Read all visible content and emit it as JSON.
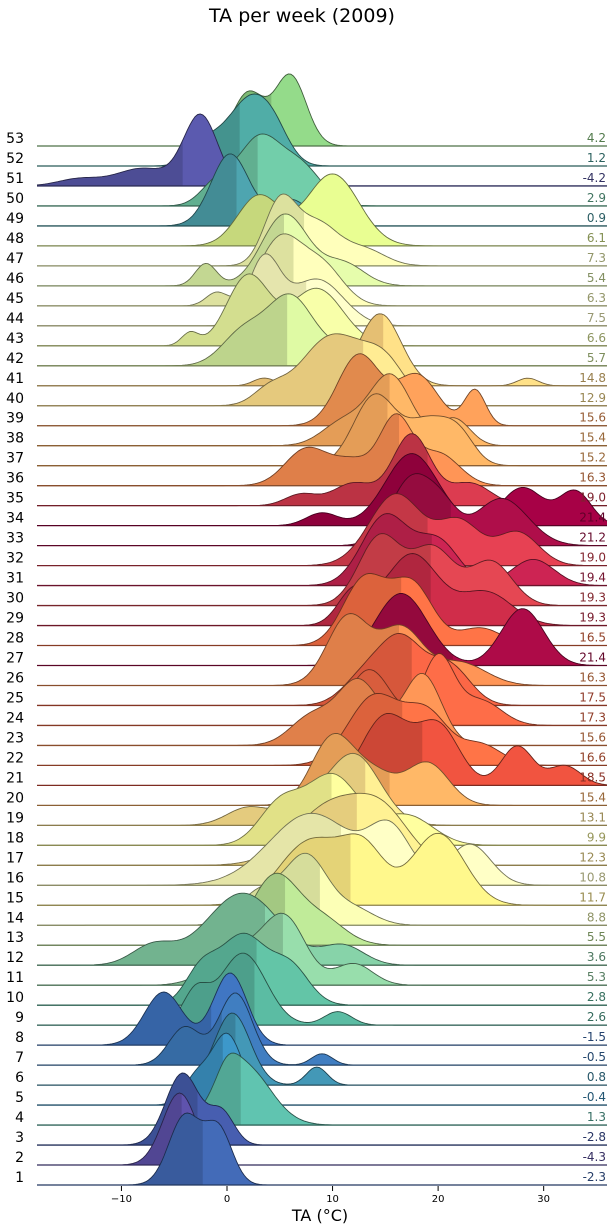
{
  "chart_data": {
    "type": "ridgeline",
    "title": "TA per week (2009)",
    "xlabel": "TA (°C)",
    "xlim": [
      -18,
      36
    ],
    "xticks": [
      -10,
      0,
      10,
      20,
      30
    ],
    "rows": [
      {
        "week": "1",
        "mean": -2.3,
        "label": "-2.3",
        "color": "#3f65ae",
        "peaks": [
          [
            -4.0,
            1.5,
            1.0
          ],
          [
            -0.8,
            1.3,
            0.8
          ]
        ]
      },
      {
        "week": "2",
        "mean": -4.3,
        "label": "-4.3",
        "color": "#5a4ea3",
        "peaks": [
          [
            -4.5,
            1.6,
            1.0
          ]
        ]
      },
      {
        "week": "3",
        "mean": -2.8,
        "label": "-2.8",
        "color": "#4359a6",
        "peaks": [
          [
            -4.2,
            1.6,
            1.0
          ],
          [
            -0.5,
            1.2,
            0.45
          ]
        ]
      },
      {
        "week": "4",
        "mean": 1.3,
        "label": "1.3",
        "color": "#5bb9a6",
        "peaks": [
          [
            1.5,
            2.5,
            0.85
          ],
          [
            0.0,
            1.0,
            0.25
          ]
        ]
      },
      {
        "week": "5",
        "mean": -0.4,
        "label": "-0.4",
        "color": "#3a8fbf",
        "peaks": [
          [
            0.0,
            1.5,
            1.0
          ],
          [
            -3.0,
            1.2,
            0.35
          ]
        ]
      },
      {
        "week": "6",
        "mean": 0.8,
        "label": "0.8",
        "color": "#3f8fad",
        "peaks": [
          [
            0.5,
            1.7,
            0.8
          ],
          [
            8.5,
            1.0,
            0.2
          ]
        ]
      },
      {
        "week": "7",
        "mean": -0.5,
        "label": "-0.5",
        "color": "#3c77b6",
        "peaks": [
          [
            0.8,
            1.6,
            0.95
          ],
          [
            -4.0,
            1.5,
            0.5
          ],
          [
            9.0,
            1.0,
            0.15
          ]
        ]
      },
      {
        "week": "8",
        "mean": -1.5,
        "label": "-1.5",
        "color": "#3c6fb8",
        "peaks": [
          [
            0.3,
            1.6,
            0.95
          ],
          [
            -6.0,
            1.8,
            0.7
          ]
        ]
      },
      {
        "week": "9",
        "mean": 2.6,
        "label": "2.6",
        "color": "#56b19a",
        "peaks": [
          [
            1.5,
            2.2,
            0.8
          ],
          [
            -3.0,
            1.2,
            0.35
          ],
          [
            10.5,
            1.3,
            0.15
          ]
        ]
      },
      {
        "week": "10",
        "mean": 2.8,
        "label": "2.8",
        "color": "#5dba9e",
        "peaks": [
          [
            1.5,
            2.2,
            0.75
          ],
          [
            -2.5,
            1.5,
            0.35
          ],
          [
            6.0,
            1.8,
            0.4
          ]
        ]
      },
      {
        "week": "11",
        "mean": 5.3,
        "label": "5.3",
        "color": "#8fd1a2",
        "peaks": [
          [
            5.5,
            2.0,
            0.75
          ],
          [
            1.0,
            2.5,
            0.4
          ],
          [
            12.0,
            1.8,
            0.25
          ]
        ]
      },
      {
        "week": "12",
        "mean": 3.6,
        "label": "3.6",
        "color": "#7fc79f",
        "peaks": [
          [
            1.5,
            3.5,
            0.75
          ],
          [
            -7.0,
            2.0,
            0.2
          ],
          [
            11.0,
            2.0,
            0.2
          ]
        ]
      },
      {
        "week": "13",
        "mean": 5.5,
        "label": "5.5",
        "color": "#b5de90",
        "peaks": [
          [
            4.5,
            2.2,
            0.95
          ],
          [
            9.0,
            2.2,
            0.35
          ]
        ]
      },
      {
        "week": "14",
        "mean": 8.8,
        "label": "8.8",
        "color": "#eef6ac",
        "peaks": [
          [
            7.5,
            2.0,
            0.85
          ],
          [
            3.0,
            2.0,
            0.4
          ],
          [
            12.0,
            2.0,
            0.2
          ]
        ]
      },
      {
        "week": "15",
        "mean": 11.7,
        "label": "11.7",
        "color": "#fdea84",
        "peaks": [
          [
            8.0,
            3.0,
            0.45
          ],
          [
            20.0,
            2.5,
            0.5
          ],
          [
            13.0,
            2.0,
            0.35
          ]
        ]
      },
      {
        "week": "16",
        "mean": 10.8,
        "label": "10.8",
        "color": "#fefebb",
        "peaks": [
          [
            8.0,
            4.0,
            0.35
          ],
          [
            15.5,
            2.0,
            0.25
          ],
          [
            23.0,
            2.0,
            0.2
          ]
        ]
      },
      {
        "week": "17",
        "mean": 12.3,
        "label": "12.3",
        "color": "#fee48b",
        "peaks": [
          [
            10.0,
            3.5,
            0.45
          ],
          [
            15.0,
            2.5,
            0.3
          ]
        ]
      },
      {
        "week": "18",
        "mean": 9.9,
        "label": "9.9",
        "color": "#fafa96",
        "peaks": [
          [
            10.0,
            2.5,
            0.7
          ],
          [
            5.0,
            2.0,
            0.4
          ],
          [
            17.0,
            2.5,
            0.3
          ]
        ]
      },
      {
        "week": "19",
        "mean": 13.1,
        "label": "13.1",
        "color": "#fde28c",
        "peaks": [
          [
            12.0,
            2.5,
            0.8
          ],
          [
            2.0,
            2.0,
            0.2
          ],
          [
            7.0,
            2.0,
            0.2
          ]
        ]
      },
      {
        "week": "20",
        "mean": 15.4,
        "label": "15.4",
        "color": "#fdae61",
        "peaks": [
          [
            10.0,
            2.0,
            0.8
          ],
          [
            19.0,
            2.0,
            0.5
          ],
          [
            14.0,
            2.0,
            0.35
          ]
        ]
      },
      {
        "week": "21",
        "mean": 18.5,
        "label": "18.5",
        "color": "#e34f3c",
        "peaks": [
          [
            15.0,
            2.2,
            0.35
          ],
          [
            20.0,
            2.0,
            0.3
          ],
          [
            27.5,
            1.5,
            0.2
          ],
          [
            32.0,
            1.5,
            0.1
          ]
        ]
      },
      {
        "week": "22",
        "mean": 16.6,
        "label": "16.6",
        "color": "#f46d43",
        "peaks": [
          [
            14.0,
            2.5,
            0.5
          ],
          [
            19.0,
            2.0,
            0.35
          ],
          [
            24.0,
            2.0,
            0.15
          ]
        ]
      },
      {
        "week": "23",
        "mean": 15.6,
        "label": "15.6",
        "color": "#f98e52",
        "peaks": [
          [
            12.5,
            2.0,
            0.45
          ],
          [
            18.5,
            1.8,
            0.5
          ],
          [
            8.0,
            2.0,
            0.2
          ]
        ]
      },
      {
        "week": "24",
        "mean": 17.3,
        "label": "17.3",
        "color": "#f06744",
        "peaks": [
          [
            13.5,
            2.0,
            0.45
          ],
          [
            20.0,
            1.5,
            0.55
          ],
          [
            24.0,
            2.0,
            0.2
          ]
        ]
      },
      {
        "week": "25",
        "mean": 17.5,
        "label": "17.5",
        "color": "#ee6142",
        "peaks": [
          [
            16.5,
            2.0,
            0.55
          ],
          [
            21.0,
            2.0,
            0.35
          ],
          [
            13.0,
            2.0,
            0.25
          ]
        ]
      },
      {
        "week": "26",
        "mean": 16.3,
        "label": "16.3",
        "color": "#f88d51",
        "peaks": [
          [
            11.5,
            2.0,
            0.75
          ],
          [
            16.5,
            2.0,
            0.6
          ],
          [
            22.0,
            2.5,
            0.25
          ]
        ]
      },
      {
        "week": "27",
        "mean": 21.4,
        "label": "21.4",
        "color": "#a40a44",
        "peaks": [
          [
            16.5,
            2.5,
            0.95
          ],
          [
            28.0,
            2.0,
            0.75
          ]
        ]
      },
      {
        "week": "28",
        "mean": 16.5,
        "label": "16.5",
        "color": "#f46d43",
        "peaks": [
          [
            13.0,
            2.0,
            0.75
          ],
          [
            17.5,
            2.0,
            0.7
          ],
          [
            24.0,
            2.0,
            0.2
          ]
        ]
      },
      {
        "week": "29",
        "mean": 19.3,
        "label": "19.3",
        "color": "#c42a46",
        "peaks": [
          [
            17.5,
            2.5,
            0.75
          ],
          [
            12.0,
            1.5,
            0.35
          ],
          [
            24.5,
            2.5,
            0.35
          ]
        ]
      },
      {
        "week": "30",
        "mean": 19.3,
        "label": "19.3",
        "color": "#d8434e",
        "peaks": [
          [
            14.5,
            2.0,
            0.55
          ],
          [
            19.5,
            2.0,
            0.45
          ],
          [
            25.0,
            2.0,
            0.35
          ]
        ]
      },
      {
        "week": "31",
        "mean": 19.4,
        "label": "19.4",
        "color": "#c1224e",
        "peaks": [
          [
            15.0,
            2.2,
            0.8
          ],
          [
            20.0,
            2.0,
            0.5
          ],
          [
            29.0,
            2.0,
            0.3
          ]
        ]
      },
      {
        "week": "32",
        "mean": 19.0,
        "label": "19.0",
        "color": "#da3d4e",
        "peaks": [
          [
            16.0,
            2.5,
            0.75
          ],
          [
            22.0,
            2.0,
            0.45
          ],
          [
            27.5,
            2.0,
            0.35
          ]
        ]
      },
      {
        "week": "33",
        "mean": 21.2,
        "label": "21.2",
        "color": "#a50d46",
        "peaks": [
          [
            17.5,
            2.0,
            0.85
          ],
          [
            26.0,
            2.5,
            0.6
          ],
          [
            20.5,
            1.5,
            0.35
          ]
        ]
      },
      {
        "week": "34",
        "mean": 21.4,
        "label": "21.4",
        "color": "#9e0142",
        "peaks": [
          [
            17.5,
            2.5,
            0.85
          ],
          [
            28.0,
            2.0,
            0.45
          ],
          [
            33.0,
            1.5,
            0.4
          ],
          [
            9.0,
            1.5,
            0.15
          ]
        ]
      },
      {
        "week": "35",
        "mean": 19.0,
        "label": "19.0",
        "color": "#d0394b",
        "peaks": [
          [
            17.5,
            1.8,
            0.95
          ],
          [
            12.0,
            2.0,
            0.3
          ],
          [
            7.0,
            1.5,
            0.15
          ],
          [
            23.0,
            2.0,
            0.3
          ]
        ]
      },
      {
        "week": "36",
        "mean": 16.3,
        "label": "16.3",
        "color": "#f88d51",
        "peaks": [
          [
            16.0,
            1.5,
            0.8
          ],
          [
            7.5,
            2.0,
            0.45
          ],
          [
            20.0,
            2.0,
            0.4
          ],
          [
            12.0,
            2.0,
            0.3
          ]
        ]
      },
      {
        "week": "37",
        "mean": 15.2,
        "label": "15.2",
        "color": "#fdae61",
        "peaks": [
          [
            14.0,
            2.0,
            0.65
          ],
          [
            19.0,
            2.0,
            0.4
          ],
          [
            22.0,
            1.5,
            0.25
          ]
        ]
      },
      {
        "week": "38",
        "mean": 15.4,
        "label": "15.4",
        "color": "#fdae61",
        "peaks": [
          [
            15.5,
            2.0,
            0.9
          ],
          [
            11.0,
            2.0,
            0.3
          ],
          [
            21.5,
            1.5,
            0.35
          ]
        ]
      },
      {
        "week": "39",
        "mean": 15.6,
        "label": "15.6",
        "color": "#fa9956",
        "peaks": [
          [
            12.5,
            2.0,
            0.7
          ],
          [
            18.0,
            2.0,
            0.5
          ],
          [
            23.5,
            1.0,
            0.35
          ]
        ]
      },
      {
        "week": "40",
        "mean": 12.9,
        "label": "12.9",
        "color": "#fedf8b",
        "peaks": [
          [
            10.0,
            3.0,
            0.75
          ],
          [
            15.0,
            2.0,
            0.4
          ],
          [
            4.0,
            1.5,
            0.15
          ]
        ]
      },
      {
        "week": "41",
        "mean": 14.8,
        "label": "14.8",
        "color": "#fed480",
        "peaks": [
          [
            14.5,
            2.0,
            0.95
          ],
          [
            3.5,
            1.0,
            0.1
          ],
          [
            8.0,
            1.5,
            0.12
          ],
          [
            28.5,
            1.0,
            0.1
          ]
        ]
      },
      {
        "week": "42",
        "mean": 5.7,
        "label": "5.7",
        "color": "#d2ec9b",
        "peaks": [
          [
            6.0,
            2.2,
            0.95
          ],
          [
            1.5,
            2.0,
            0.45
          ],
          [
            11.0,
            2.0,
            0.2
          ]
        ]
      },
      {
        "week": "43",
        "mean": 6.6,
        "label": "6.6",
        "color": "#eaf79f",
        "peaks": [
          [
            2.0,
            2.0,
            0.55
          ],
          [
            8.5,
            2.5,
            0.45
          ],
          [
            -3.5,
            0.8,
            0.1
          ]
        ]
      },
      {
        "week": "44",
        "mean": 7.5,
        "label": "7.5",
        "color": "#fefec0",
        "peaks": [
          [
            3.5,
            1.5,
            0.7
          ],
          [
            8.5,
            2.5,
            0.5
          ]
        ]
      },
      {
        "week": "45",
        "mean": 6.3,
        "label": "6.3",
        "color": "#f5fab1",
        "peaks": [
          [
            5.0,
            2.0,
            0.75
          ],
          [
            9.0,
            2.0,
            0.45
          ],
          [
            -1.0,
            1.0,
            0.15
          ]
        ]
      },
      {
        "week": "46",
        "mean": 5.4,
        "label": "5.4",
        "color": "#d9efa2",
        "peaks": [
          [
            5.5,
            2.2,
            0.8
          ],
          [
            -2.0,
            1.0,
            0.25
          ],
          [
            11.0,
            2.0,
            0.25
          ]
        ]
      },
      {
        "week": "47",
        "mean": 7.3,
        "label": "7.3",
        "color": "#f4fab0",
        "peaks": [
          [
            5.0,
            1.5,
            0.95
          ],
          [
            8.5,
            2.0,
            0.65
          ],
          [
            13.0,
            2.0,
            0.25
          ]
        ]
      },
      {
        "week": "48",
        "mean": 6.1,
        "label": "6.1",
        "color": "#dcf08a",
        "peaks": [
          [
            10.0,
            2.5,
            0.65
          ],
          [
            3.0,
            2.0,
            0.45
          ]
        ]
      },
      {
        "week": "49",
        "mean": 0.9,
        "label": "0.9",
        "color": "#4a9ca6",
        "peaks": [
          [
            0.3,
            1.8,
            0.95
          ],
          [
            6.0,
            1.8,
            0.35
          ]
        ]
      },
      {
        "week": "50",
        "mean": 2.9,
        "label": "2.9",
        "color": "#6cc2a0",
        "peaks": [
          [
            3.0,
            2.0,
            0.6
          ],
          [
            7.0,
            2.0,
            0.35
          ],
          [
            -1.0,
            1.5,
            0.2
          ]
        ]
      },
      {
        "week": "51",
        "mean": -4.2,
        "label": "-4.2",
        "color": "#5655a5",
        "peaks": [
          [
            -2.5,
            1.6,
            1.0
          ],
          [
            -8.0,
            2.5,
            0.25
          ],
          [
            -14.0,
            2.0,
            0.1
          ]
        ]
      },
      {
        "week": "52",
        "mean": 1.2,
        "label": "1.2",
        "color": "#4ba39e",
        "peaks": [
          [
            2.0,
            2.0,
            0.75
          ],
          [
            -2.0,
            1.5,
            0.25
          ],
          [
            4.5,
            1.5,
            0.3
          ]
        ]
      },
      {
        "week": "53",
        "mean": 4.2,
        "label": "4.2",
        "color": "#8ccf82",
        "peaks": [
          [
            6.0,
            1.5,
            0.6
          ],
          [
            2.0,
            1.5,
            0.45
          ]
        ]
      }
    ]
  }
}
